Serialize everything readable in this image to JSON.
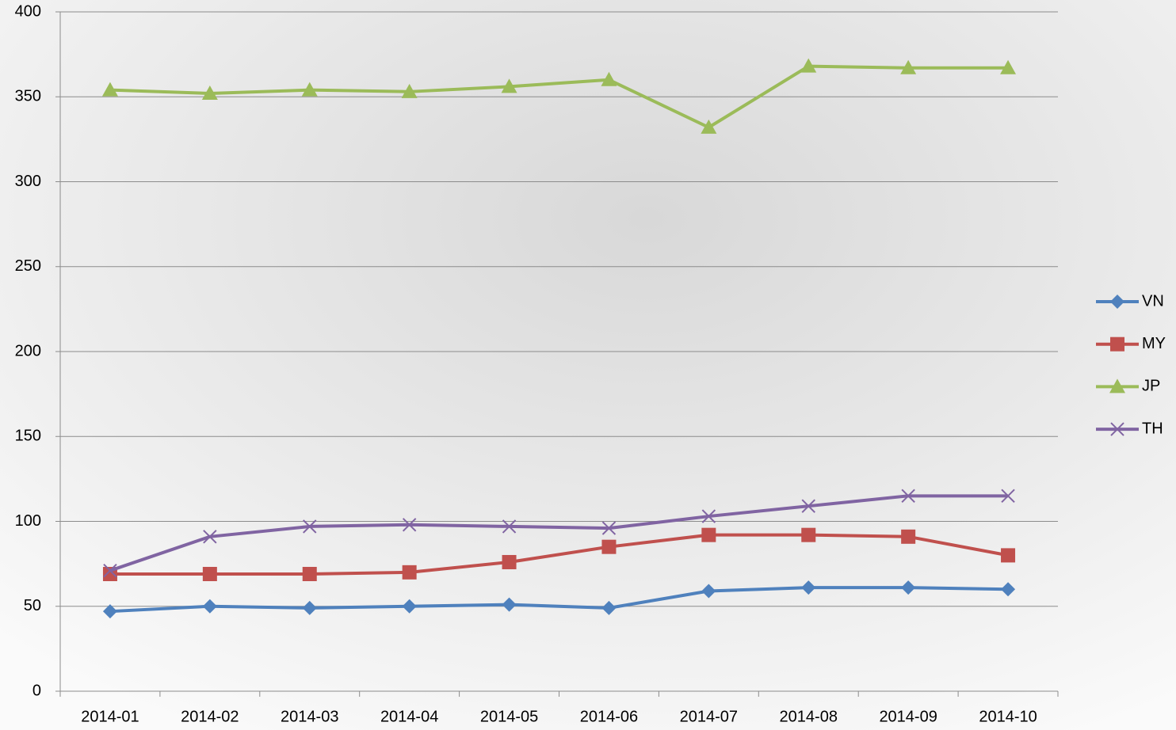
{
  "chart_data": {
    "type": "line",
    "categories": [
      "2014-01",
      "2014-02",
      "2014-03",
      "2014-04",
      "2014-05",
      "2014-06",
      "2014-07",
      "2014-08",
      "2014-09",
      "2014-10"
    ],
    "series": [
      {
        "name": "VN",
        "color": "#4f81bd",
        "marker": "diamond",
        "values": [
          47,
          50,
          49,
          50,
          51,
          49,
          59,
          61,
          61,
          60
        ]
      },
      {
        "name": "MY",
        "color": "#c0504d",
        "marker": "square",
        "values": [
          69,
          69,
          69,
          70,
          76,
          85,
          92,
          92,
          91,
          80
        ]
      },
      {
        "name": "JP",
        "color": "#9bbb59",
        "marker": "triangle",
        "values": [
          354,
          352,
          354,
          353,
          356,
          360,
          332,
          368,
          367,
          367
        ]
      },
      {
        "name": "TH",
        "color": "#8064a2",
        "marker": "x",
        "values": [
          71,
          91,
          97,
          98,
          97,
          96,
          103,
          109,
          115,
          115
        ]
      }
    ],
    "ylim": [
      0,
      400
    ],
    "yticks": [
      0,
      50,
      100,
      150,
      200,
      250,
      300,
      350,
      400
    ],
    "grid": true,
    "legend": "right"
  }
}
